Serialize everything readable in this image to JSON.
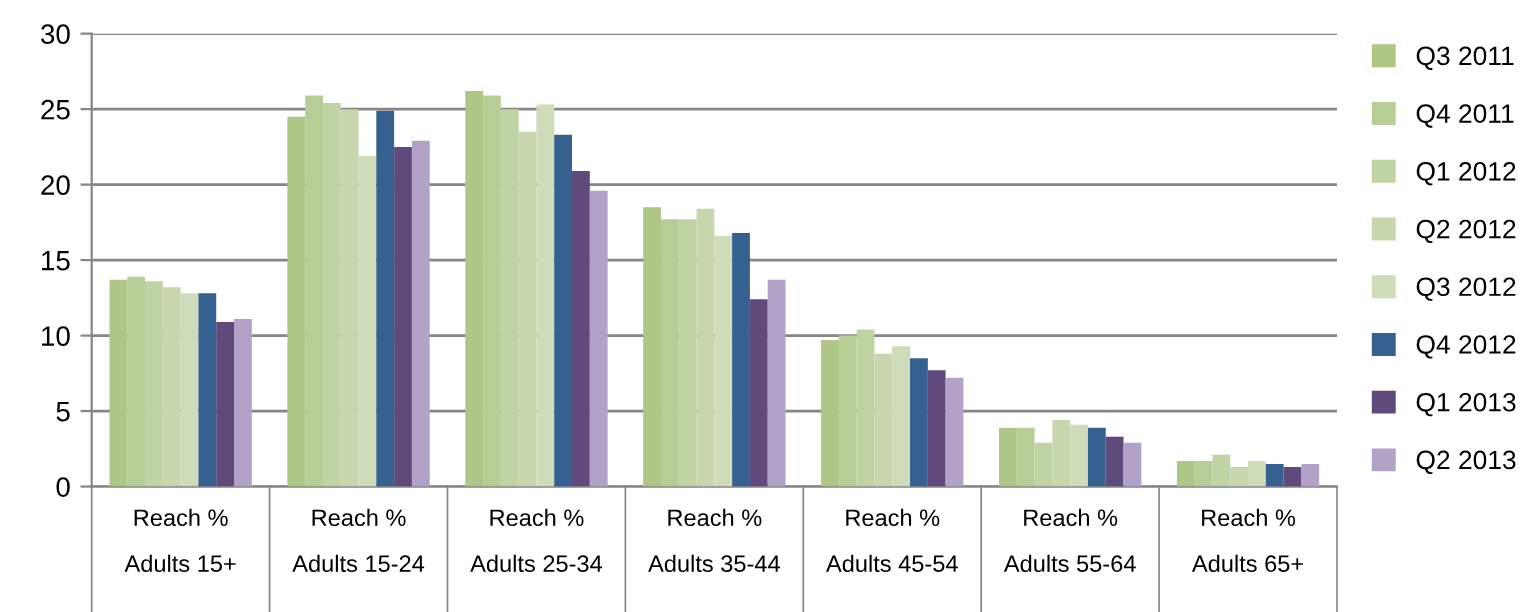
{
  "chart_data": {
    "type": "bar",
    "categories": [
      "Reach %\nAdults 15+",
      "Reach %\nAdults 15-24",
      "Reach %\nAdults 25-34",
      "Reach %\nAdults 35-44",
      "Reach %\nAdults 45-54",
      "Reach %\nAdults 55-64",
      "Reach %\nAdults 65+"
    ],
    "series": [
      {
        "name": "Q3 2011",
        "color": "#aec686",
        "values": [
          13.7,
          24.5,
          26.2,
          18.5,
          9.7,
          3.9,
          1.7
        ]
      },
      {
        "name": "Q4 2011",
        "color": "#b8cd95",
        "values": [
          13.9,
          25.9,
          25.9,
          17.7,
          10.0,
          3.9,
          1.7
        ]
      },
      {
        "name": "Q1 2012",
        "color": "#c0d3a2",
        "values": [
          13.6,
          25.4,
          25.0,
          17.7,
          10.4,
          2.9,
          2.1
        ]
      },
      {
        "name": "Q2 2012",
        "color": "#c7d6ad",
        "values": [
          13.2,
          25.0,
          23.5,
          18.4,
          8.8,
          4.4,
          1.3
        ]
      },
      {
        "name": "Q3 2012",
        "color": "#cfdcba",
        "values": [
          12.8,
          21.9,
          25.3,
          16.6,
          9.3,
          4.1,
          1.7
        ]
      },
      {
        "name": "Q4 2012",
        "color": "#35608f",
        "values": [
          12.8,
          24.9,
          23.3,
          16.8,
          8.5,
          3.9,
          1.5
        ]
      },
      {
        "name": "Q1 2013",
        "color": "#5f4a7b",
        "values": [
          10.9,
          22.5,
          20.9,
          12.4,
          7.7,
          3.3,
          1.3
        ]
      },
      {
        "name": "Q2 2013",
        "color": "#b2a2c7",
        "values": [
          11.1,
          22.9,
          19.6,
          13.7,
          7.2,
          2.9,
          1.5
        ]
      }
    ],
    "ylim": [
      0,
      30
    ],
    "yticks": [
      0,
      5,
      10,
      15,
      20,
      25,
      30
    ],
    "grid": "y",
    "legend": "right"
  }
}
